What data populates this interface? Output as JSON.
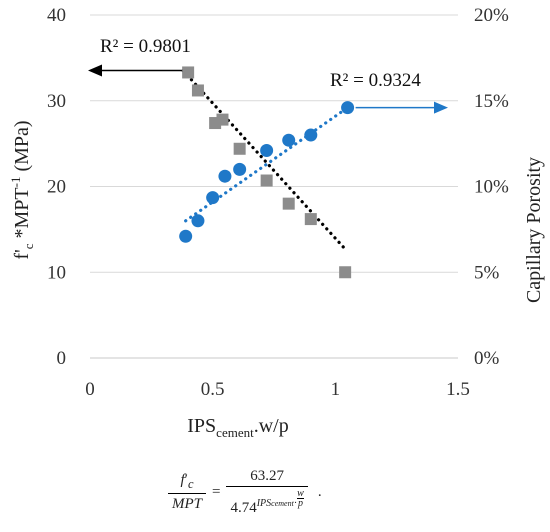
{
  "chart_data": {
    "type": "scatter",
    "title": "",
    "xlabel": {
      "main": "IPS",
      "sub": "cement",
      "rest": ".w/p"
    },
    "ylabel_left": {
      "part1": "f'",
      "sub": "c",
      "part2": " *MPT",
      "sup": "-1",
      "part3": " (MPa)"
    },
    "ylabel_right": "Capillary Porosity",
    "xlim": [
      0,
      1.5
    ],
    "ylim_left": [
      0,
      40
    ],
    "ylim_right": [
      0,
      0.2
    ],
    "x_ticks": [
      {
        "value": 0,
        "label": "0"
      },
      {
        "value": 0.5,
        "label": "0.5"
      },
      {
        "value": 1,
        "label": "1"
      },
      {
        "value": 1.5,
        "label": "1.5"
      }
    ],
    "y_left_ticks": [
      {
        "value": 0,
        "label": "0"
      },
      {
        "value": 10,
        "label": "10"
      },
      {
        "value": 20,
        "label": "20"
      },
      {
        "value": 30,
        "label": "30"
      },
      {
        "value": 40,
        "label": "40"
      }
    ],
    "y_right_ticks": [
      {
        "value": 0,
        "label": "0%"
      },
      {
        "value": 0.05,
        "label": "5%"
      },
      {
        "value": 0.1,
        "label": "10%"
      },
      {
        "value": 0.15,
        "label": "15%"
      },
      {
        "value": 0.2,
        "label": "20%"
      }
    ],
    "grid": "horizontal",
    "series": [
      {
        "axis": "left",
        "marker": "square",
        "color": "#8c8c8c",
        "trend_color": "#000000",
        "points": [
          {
            "x": 0.4,
            "y": 33.3
          },
          {
            "x": 0.44,
            "y": 31.2
          },
          {
            "x": 0.51,
            "y": 27.4
          },
          {
            "x": 0.54,
            "y": 27.8
          },
          {
            "x": 0.61,
            "y": 24.4
          },
          {
            "x": 0.72,
            "y": 20.7
          },
          {
            "x": 0.81,
            "y": 18.0
          },
          {
            "x": 0.9,
            "y": 16.2
          },
          {
            "x": 1.04,
            "y": 10.0
          }
        ],
        "trendline": {
          "from": 0.38,
          "to": 1.04,
          "start_y": 33.5,
          "end_y": 12.7
        },
        "r2_label": "R² = 0.9801"
      },
      {
        "axis": "right",
        "marker": "circle",
        "color": "#1f78c8",
        "trend_color": "#1f78c8",
        "points": [
          {
            "x": 0.39,
            "y": 0.071
          },
          {
            "x": 0.44,
            "y": 0.08
          },
          {
            "x": 0.5,
            "y": 0.0935
          },
          {
            "x": 0.55,
            "y": 0.106
          },
          {
            "x": 0.61,
            "y": 0.11
          },
          {
            "x": 0.72,
            "y": 0.121
          },
          {
            "x": 0.81,
            "y": 0.127
          },
          {
            "x": 0.9,
            "y": 0.13
          },
          {
            "x": 1.05,
            "y": 0.146
          }
        ],
        "trendline": {
          "from": 0.39,
          "to": 1.05,
          "start_y": 0.08,
          "end_y": 0.146
        },
        "r2_label": "R² = 0.9324"
      }
    ]
  },
  "formula": {
    "lhs_num": "f",
    "lhs_num_prime": "′",
    "lhs_num_sub": "c",
    "lhs_den": "MPT",
    "equals": "=",
    "rhs_num": "63.27",
    "rhs_den_base": "4.74",
    "rhs_den_exp": "IPS",
    "rhs_den_exp_sub": "cement",
    "rhs_den_dot": "·",
    "rhs_den_w": "w",
    "rhs_den_p": "p",
    "tail": "."
  }
}
